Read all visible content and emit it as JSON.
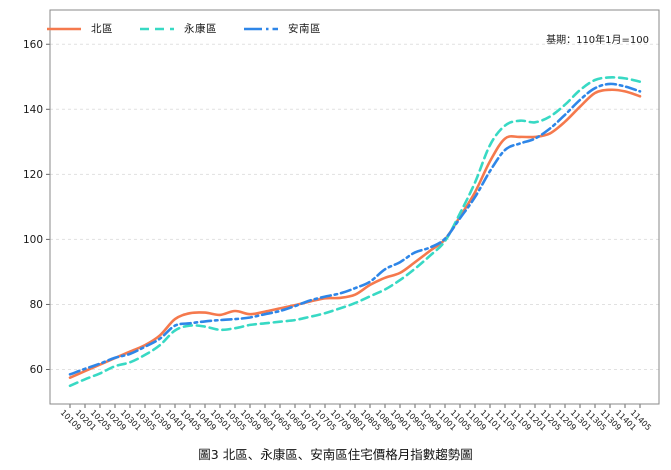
{
  "title": "圖3 北區、永康區、安南區住宅價格月指數趨勢圖",
  "annotation": "基期：110年1月=100",
  "legend": [
    {
      "label": "北區",
      "color": "#F5794D",
      "style": "solid"
    },
    {
      "label": "永康區",
      "color": "#38D9C4",
      "style": "dashed"
    },
    {
      "label": "安南區",
      "color": "#2E86E8",
      "style": "dashdot"
    }
  ],
  "chart_data": {
    "type": "line",
    "title": "圖3 北區、永康區、安南區住宅價格月指數趨勢圖",
    "note": "基期：110年1月=100",
    "xlabel": "",
    "ylabel": "",
    "ylim": [
      50,
      170
    ],
    "yticks": [
      60,
      80,
      100,
      120,
      140,
      160
    ],
    "grid": "horizontal-dashed",
    "legend_position": "top-left-inside",
    "categories": [
      "10109",
      "10201",
      "10205",
      "10209",
      "10301",
      "10305",
      "10309",
      "10401",
      "10405",
      "10409",
      "10501",
      "10505",
      "10509",
      "10601",
      "10605",
      "10609",
      "10701",
      "10705",
      "10709",
      "10801",
      "10805",
      "10809",
      "10901",
      "10905",
      "10909",
      "11001",
      "11005",
      "11009",
      "11101",
      "11105",
      "11109",
      "11201",
      "11205",
      "11209",
      "11301",
      "11305",
      "11309",
      "11401",
      "11405"
    ],
    "series": [
      {
        "name": "北區",
        "color": "#F5794D",
        "style": "solid",
        "values": [
          57.5,
          59.5,
          61.5,
          63.5,
          65.5,
          67.5,
          70.5,
          75.5,
          77.3,
          77.5,
          76.8,
          78.0,
          77.0,
          77.8,
          78.8,
          79.8,
          80.9,
          81.9,
          82.0,
          83.0,
          86.0,
          88.2,
          89.7,
          93.0,
          96.5,
          100.0,
          107.0,
          114.5,
          124.0,
          131.0,
          131.5,
          131.5,
          132.6,
          136.2,
          140.8,
          145.0,
          146.0,
          145.5,
          144.0
        ]
      },
      {
        "name": "永康區",
        "color": "#38D9C4",
        "style": "dashed",
        "values": [
          55.0,
          57.0,
          58.8,
          61.0,
          62.2,
          64.5,
          67.5,
          72.0,
          73.5,
          73.2,
          72.2,
          72.7,
          73.7,
          74.2,
          74.7,
          75.2,
          76.2,
          77.3,
          78.8,
          80.4,
          82.5,
          84.6,
          87.5,
          91.0,
          95.0,
          99.5,
          108.0,
          117.5,
          129.0,
          135.0,
          136.5,
          136.0,
          137.8,
          141.4,
          145.9,
          149.0,
          149.8,
          149.5,
          148.5
        ]
      },
      {
        "name": "安南區",
        "color": "#2E86E8",
        "style": "dashdot",
        "values": [
          58.5,
          60.2,
          61.8,
          63.6,
          64.8,
          67.0,
          69.5,
          73.5,
          74.2,
          74.8,
          75.2,
          75.5,
          76.0,
          77.0,
          78.0,
          79.5,
          81.2,
          82.4,
          83.4,
          85.0,
          87.0,
          90.8,
          93.0,
          96.0,
          97.5,
          100.2,
          106.5,
          113.0,
          121.0,
          127.5,
          129.5,
          131.0,
          134.1,
          138.3,
          142.9,
          146.5,
          147.8,
          147.0,
          145.5
        ]
      }
    ]
  }
}
